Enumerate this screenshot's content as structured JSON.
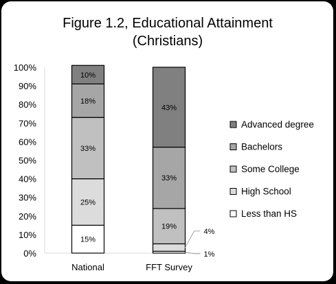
{
  "chart_data": {
    "type": "bar",
    "stacked": true,
    "title": [
      "Figure 1.2, Educational Attainment",
      "(Christians)"
    ],
    "categories": [
      "National",
      "FFT Survey"
    ],
    "ylim": [
      0,
      100
    ],
    "yticks": [
      "0%",
      "10%",
      "20%",
      "30%",
      "40%",
      "50%",
      "60%",
      "70%",
      "80%",
      "90%",
      "100%"
    ],
    "grid": false,
    "legend": "right",
    "series": [
      {
        "name": "Less than HS",
        "values": [
          15,
          1
        ],
        "labels": [
          "15%",
          "1%"
        ],
        "color": "#ffffff"
      },
      {
        "name": "High School",
        "values": [
          25,
          4
        ],
        "labels": [
          "25%",
          "4%"
        ],
        "color": "#dcdcdc"
      },
      {
        "name": "Some College",
        "values": [
          33,
          19
        ],
        "labels": [
          "33%",
          "19%"
        ],
        "color": "#c0c0c0"
      },
      {
        "name": "Bachelors",
        "values": [
          18,
          33
        ],
        "labels": [
          "18%",
          "33%"
        ],
        "color": "#a6a6a6"
      },
      {
        "name": "Advanced degree",
        "values": [
          10,
          43
        ],
        "labels": [
          "10%",
          "43%"
        ],
        "color": "#808080"
      }
    ]
  }
}
